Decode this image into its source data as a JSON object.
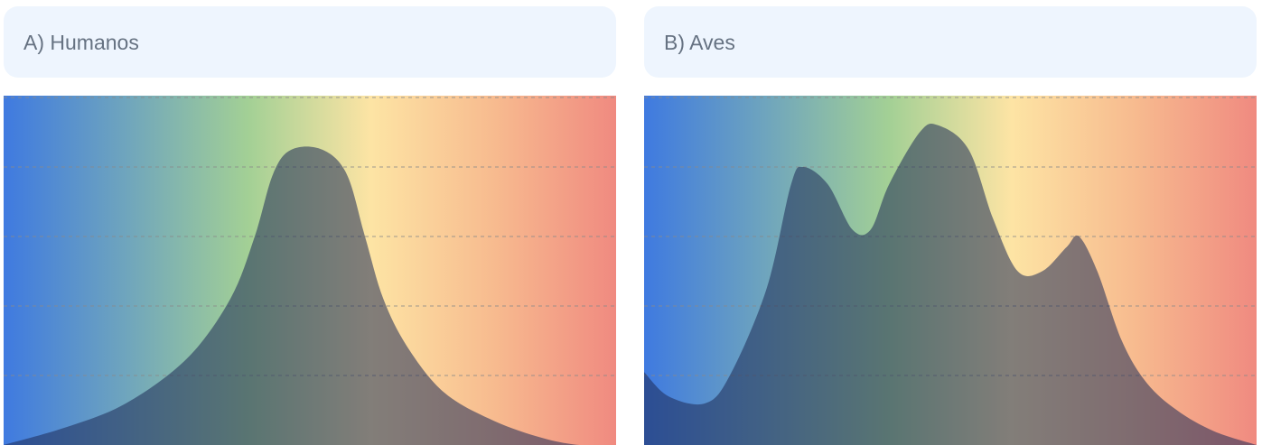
{
  "colors": {
    "header_bg": "#eef5fe",
    "title_text": "#667282",
    "spectrum": [
      "#3f7ae0",
      "#6fa5bd",
      "#a3d095",
      "#fde4a4",
      "#f7bb8f",
      "#f08a80"
    ],
    "curve_fill": "#1e2a55",
    "curve_fill_opacity": 0.55,
    "gridline": "#8a8a8a"
  },
  "chart_data": [
    {
      "type": "area",
      "title": "A) Humanos",
      "xlabel": "",
      "ylabel": "",
      "xlim": [
        0,
        1
      ],
      "ylim": [
        0,
        1
      ],
      "grid": true,
      "gridlines": [
        0.2,
        0.4,
        0.6,
        0.8,
        1.0
      ],
      "series": [
        {
          "x": [
            0.0,
            0.1,
            0.2,
            0.3,
            0.37,
            0.41,
            0.44,
            0.47,
            0.52,
            0.56,
            0.59,
            0.62,
            0.66,
            0.72,
            0.8,
            0.88,
            0.94,
            1.0
          ],
          "values": [
            0.0,
            0.05,
            0.12,
            0.25,
            0.42,
            0.6,
            0.78,
            0.85,
            0.85,
            0.78,
            0.6,
            0.42,
            0.28,
            0.15,
            0.07,
            0.02,
            0.0,
            0.0
          ]
        }
      ]
    },
    {
      "type": "area",
      "title": "B) Aves",
      "xlabel": "",
      "ylabel": "",
      "xlim": [
        0,
        1
      ],
      "ylim": [
        0,
        1
      ],
      "grid": true,
      "gridlines": [
        0.2,
        0.4,
        0.6,
        0.8,
        1.0
      ],
      "series": [
        {
          "x": [
            0.0,
            0.04,
            0.1,
            0.14,
            0.2,
            0.24,
            0.26,
            0.3,
            0.34,
            0.37,
            0.4,
            0.45,
            0.48,
            0.53,
            0.57,
            0.61,
            0.65,
            0.69,
            0.71,
            0.74,
            0.78,
            0.82,
            0.87,
            0.93,
            1.0
          ],
          "values": [
            0.21,
            0.14,
            0.12,
            0.2,
            0.45,
            0.75,
            0.8,
            0.75,
            0.62,
            0.62,
            0.75,
            0.9,
            0.92,
            0.85,
            0.65,
            0.5,
            0.5,
            0.57,
            0.6,
            0.5,
            0.3,
            0.18,
            0.1,
            0.04,
            0.0
          ]
        }
      ]
    }
  ]
}
